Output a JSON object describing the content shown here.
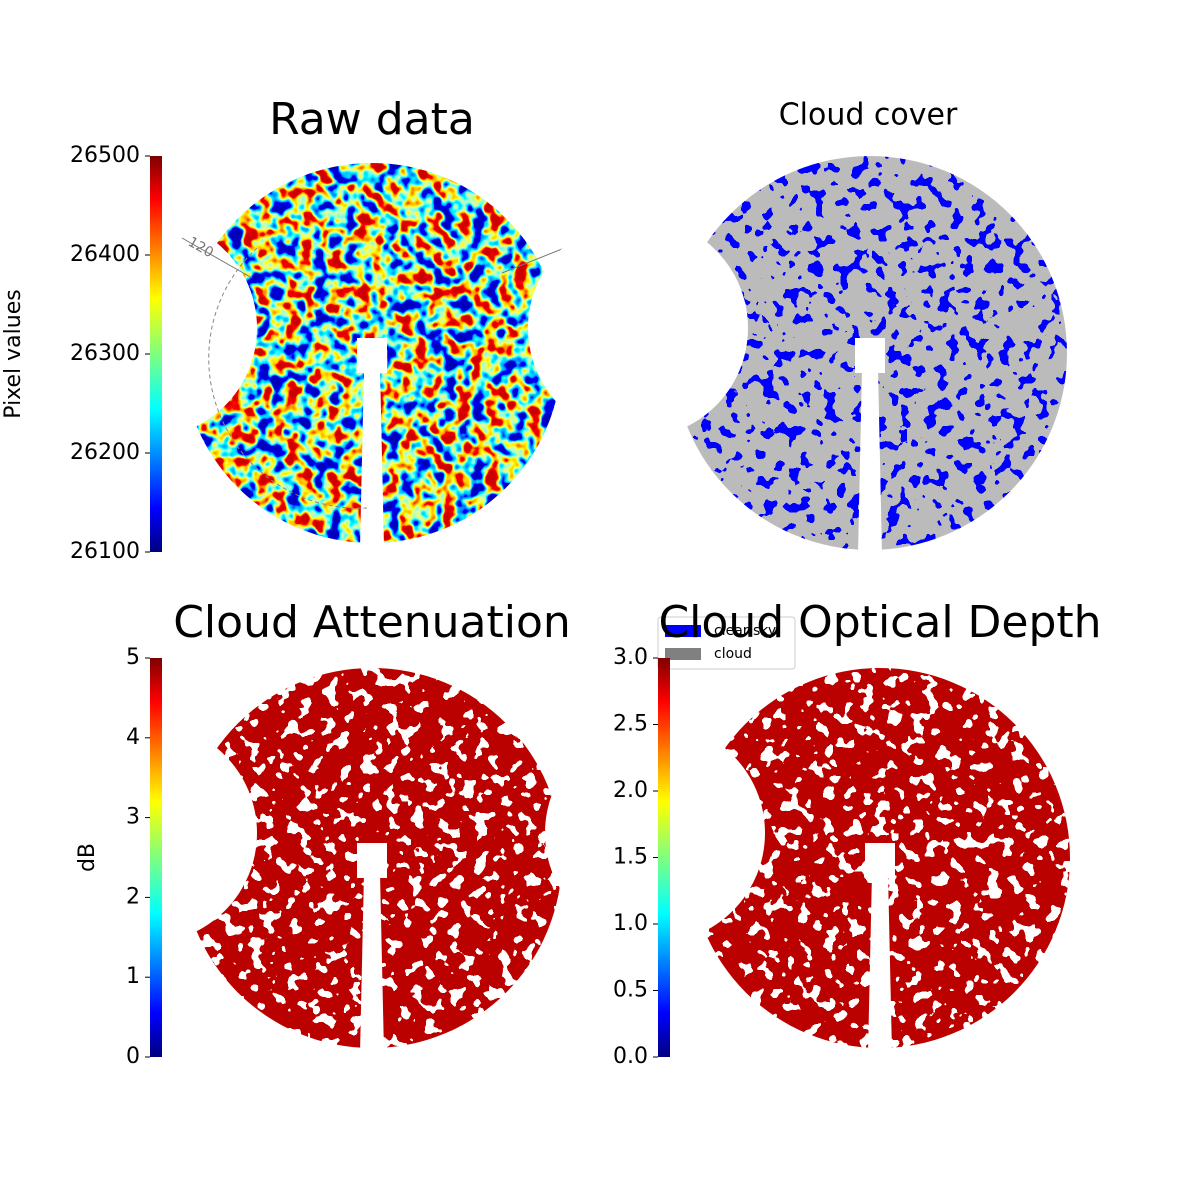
{
  "chart_data": [
    {
      "type": "image",
      "title": "Raw data",
      "colormap": "jet",
      "colorbar_label": "Pixel values",
      "clim": [
        26100,
        26500
      ],
      "cticks": [
        26100,
        26200,
        26300,
        26400,
        26500
      ],
      "annotations": [
        "120"
      ]
    },
    {
      "type": "mask",
      "title": "Cloud cover",
      "series": [
        {
          "name": "clear sky",
          "color": "#0000ff"
        },
        {
          "name": "cloud",
          "color": "#808080"
        }
      ]
    },
    {
      "type": "image",
      "title": "Cloud Attenuation",
      "colormap": "jet",
      "colorbar_label": "dB",
      "clim": [
        0,
        5
      ],
      "cticks": [
        0,
        1,
        2,
        3,
        4,
        5
      ]
    },
    {
      "type": "image",
      "title": "Cloud Optical Depth",
      "colormap": "jet",
      "clim": [
        0,
        3
      ],
      "cticks": [
        {
          "value": 0,
          "label": "0.0"
        },
        0.5,
        {
          "value": 1,
          "label": "1.0"
        },
        1.5,
        {
          "value": 2,
          "label": "2.0"
        },
        2.5,
        {
          "value": 3,
          "label": "3.0"
        }
      ]
    }
  ]
}
